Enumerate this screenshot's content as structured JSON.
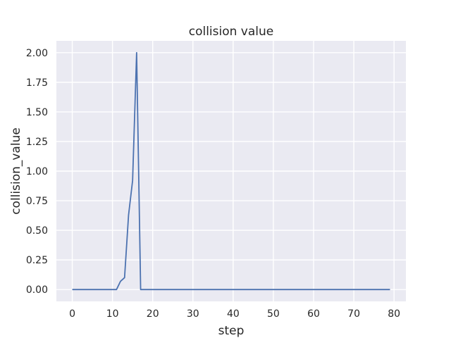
{
  "chart_data": {
    "type": "line",
    "title": "collision value",
    "xlabel": "step",
    "ylabel": "collision_value",
    "xlim": [
      -3.95,
      82.95
    ],
    "ylim": [
      -0.1,
      2.1
    ],
    "x_ticks": [
      0,
      10,
      20,
      30,
      40,
      50,
      60,
      70,
      80
    ],
    "y_ticks": [
      0.0,
      0.25,
      0.5,
      0.75,
      1.0,
      1.25,
      1.5,
      1.75,
      2.0
    ],
    "y_tick_labels": [
      "0.00",
      "0.25",
      "0.50",
      "0.75",
      "1.00",
      "1.25",
      "1.50",
      "1.75",
      "2.00"
    ],
    "grid": true,
    "background": "#EAEAF2",
    "series": [
      {
        "color": "#4C72B0",
        "x": [
          0,
          1,
          2,
          3,
          4,
          5,
          6,
          7,
          8,
          9,
          10,
          11,
          12,
          13,
          14,
          15,
          16,
          17,
          18,
          19,
          20,
          25,
          30,
          35,
          40,
          45,
          50,
          55,
          60,
          65,
          70,
          75,
          79
        ],
        "y": [
          0,
          0,
          0,
          0,
          0,
          0,
          0,
          0,
          0,
          0,
          0,
          0,
          0.07,
          0.1,
          0.63,
          0.92,
          2.0,
          0,
          0,
          0,
          0,
          0,
          0,
          0,
          0,
          0,
          0,
          0,
          0,
          0,
          0,
          0,
          0
        ]
      }
    ]
  }
}
